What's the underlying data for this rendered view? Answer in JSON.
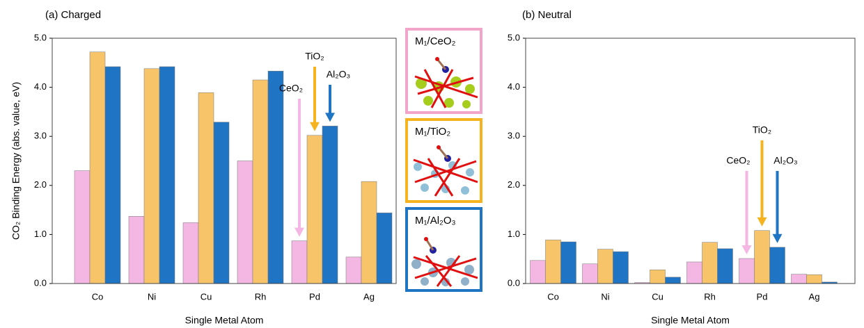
{
  "chart_data": [
    {
      "type": "bar",
      "title": "(a) Charged",
      "x_label": "Single Metal Atom",
      "y_label": "CO₂ Binding Energy (abs. value, eV)",
      "categories": [
        "Co",
        "Ni",
        "Cu",
        "Rh",
        "Pd",
        "Ag"
      ],
      "series": [
        {
          "name": "CeO₂",
          "color": "#f4b6e2",
          "values": [
            2.3,
            1.37,
            1.24,
            2.5,
            0.87,
            0.54
          ]
        },
        {
          "name": "TiO₂",
          "color": "#f8c46a",
          "values": [
            4.72,
            4.38,
            3.89,
            4.15,
            3.02,
            2.08
          ]
        },
        {
          "name": "Al₂O₃",
          "color": "#1f74c4",
          "values": [
            4.42,
            4.42,
            3.29,
            4.33,
            3.21,
            1.44
          ]
        }
      ],
      "ylim": [
        0,
        5
      ],
      "yticks": [
        {
          "value": 0,
          "label": "0.0"
        },
        {
          "value": 1,
          "label": "1.0"
        },
        {
          "value": 2,
          "label": "2.0"
        },
        {
          "value": 3,
          "label": "3.0"
        },
        {
          "value": 4,
          "label": "4.0"
        },
        {
          "value": 5,
          "label": "5.0"
        }
      ]
    },
    {
      "type": "bar",
      "title": "(b) Neutral",
      "x_label": "Single Metal Atom",
      "categories": [
        "Co",
        "Ni",
        "Cu",
        "Rh",
        "Pd",
        "Ag"
      ],
      "series": [
        {
          "name": "CeO₂",
          "color": "#f4b6e2",
          "values": [
            0.47,
            0.4,
            0.02,
            0.44,
            0.51,
            0.19
          ]
        },
        {
          "name": "TiO₂",
          "color": "#f8c46a",
          "values": [
            0.89,
            0.7,
            0.28,
            0.84,
            1.08,
            0.18
          ]
        },
        {
          "name": "Al₂O₃",
          "color": "#1f74c4",
          "values": [
            0.85,
            0.65,
            0.13,
            0.71,
            0.74,
            0.03
          ]
        }
      ],
      "ylim": [
        0,
        5
      ],
      "yticks": [
        {
          "value": 0,
          "label": "0.0"
        },
        {
          "value": 1,
          "label": "1.0"
        },
        {
          "value": 2,
          "label": "2.0"
        },
        {
          "value": 3,
          "label": "3.0"
        },
        {
          "value": 4,
          "label": "4.0"
        },
        {
          "value": 5,
          "label": "5.0"
        }
      ]
    }
  ],
  "structures": [
    {
      "label": "M₁/CeO₂"
    },
    {
      "label": "M₁/TiO₂"
    },
    {
      "label": "M₁/Al₂O₃"
    }
  ]
}
